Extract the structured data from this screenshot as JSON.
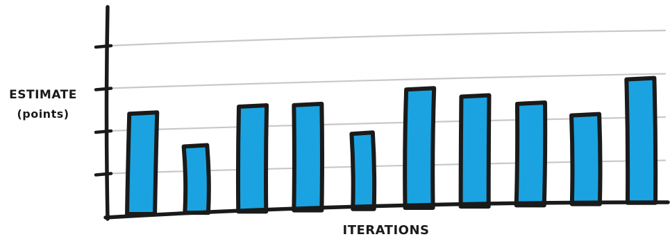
{
  "chart_data": {
    "type": "bar",
    "title": "",
    "ylabel": "ESTIMATE",
    "ylabel_sub": "(points)",
    "xlabel": "ITERATIONS",
    "categories": [
      "",
      "",
      "",
      "",
      "",
      "",
      "",
      "",
      "",
      ""
    ],
    "values": [
      2.4,
      1.6,
      2.5,
      2.5,
      1.8,
      2.8,
      2.6,
      2.4,
      2.1,
      2.9
    ],
    "ylim": [
      0,
      4
    ],
    "y_ticks": 4,
    "grid": true,
    "tick_labels_shown": false,
    "colors": {
      "bar_fill": "#1aa3e0",
      "bar_outline": "#1a1a1a",
      "axis": "#1a1a1a",
      "grid": "#c8c8c8"
    }
  }
}
